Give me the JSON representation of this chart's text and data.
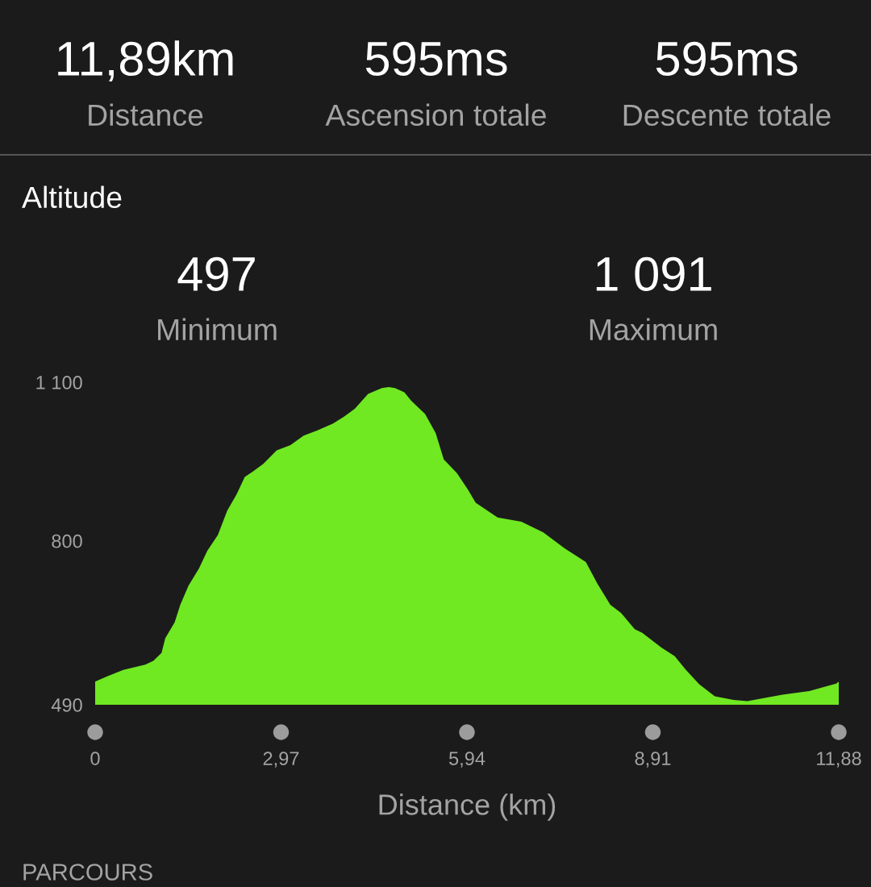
{
  "chart_data": {
    "type": "area",
    "title": "Altitude",
    "xlabel": "Distance (km)",
    "annotations": [
      "11,89km",
      "Distance",
      "595ms",
      "Ascension totale",
      "595ms",
      "Descente totale",
      "497",
      "Minimum",
      "1 091",
      "Maximum",
      "PARCOURS"
    ],
    "x": [
      0.0,
      0.2,
      0.45,
      0.8,
      0.93,
      1.06,
      1.12,
      1.27,
      1.36,
      1.49,
      1.66,
      1.79,
      1.96,
      2.11,
      2.26,
      2.39,
      2.52,
      2.69,
      2.9,
      3.12,
      3.33,
      3.55,
      3.8,
      3.98,
      4.15,
      4.36,
      4.58,
      4.69,
      4.79,
      4.94,
      5.05,
      5.27,
      5.44,
      5.57,
      5.78,
      5.95,
      6.08,
      6.43,
      6.81,
      7.16,
      7.5,
      7.84,
      8.02,
      8.23,
      8.4,
      8.62,
      8.74,
      9.05,
      9.26,
      9.43,
      9.65,
      9.9,
      10.2,
      10.42,
      10.98,
      11.41,
      11.84,
      11.88
    ],
    "values": [
      534,
      544,
      556,
      566,
      573,
      588,
      616,
      646,
      679,
      715,
      748,
      781,
      811,
      857,
      888,
      921,
      931,
      946,
      971,
      981,
      999,
      1009,
      1022,
      1035,
      1050,
      1078,
      1089,
      1091,
      1089,
      1081,
      1065,
      1040,
      1004,
      954,
      928,
      898,
      872,
      844,
      836,
      816,
      786,
      760,
      720,
      679,
      664,
      633,
      626,
      598,
      582,
      557,
      529,
      506,
      499,
      497,
      509,
      516,
      530,
      534
    ],
    "color": "#70e822",
    "xlim": [
      0,
      11.88
    ],
    "xticks": [
      0,
      {
        "value": 2.97,
        "label": "2,97"
      },
      {
        "value": 5.94,
        "label": "5,94"
      },
      {
        "value": 8.91,
        "label": "8,91"
      },
      {
        "value": 11.88,
        "label": "11,88"
      }
    ],
    "ylim": [
      490,
      1100
    ],
    "yticks": [
      490,
      800,
      {
        "value": 1100,
        "label": "1 100"
      }
    ]
  }
}
